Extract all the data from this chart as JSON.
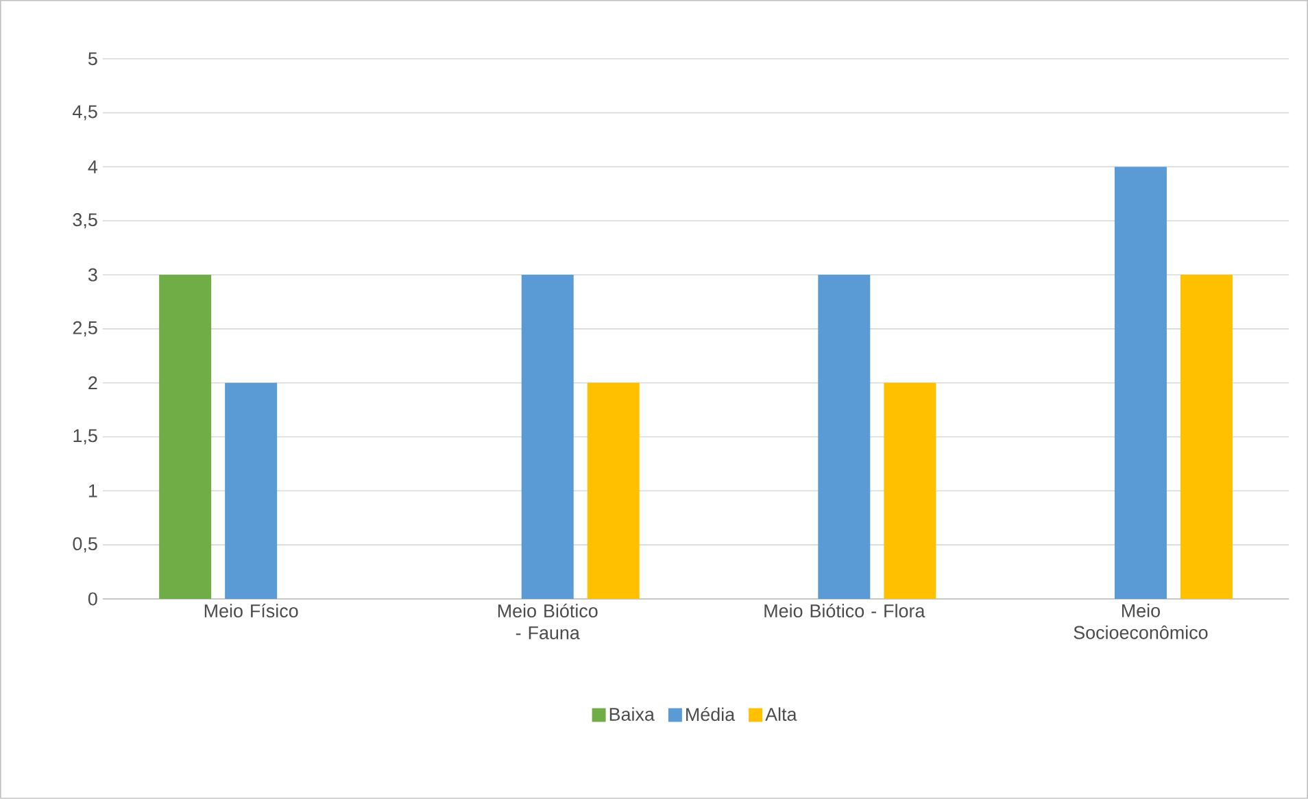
{
  "chart_data": {
    "type": "bar",
    "categories": [
      "Meio Físico",
      "Meio Biótico - Fauna",
      "Meio Biótico - Flora",
      "Meio Socioeconômico"
    ],
    "series": [
      {
        "name": "Baixa",
        "color": "#70ad47",
        "values": [
          3,
          null,
          null,
          null
        ]
      },
      {
        "name": "Média",
        "color": "#5b9bd5",
        "values": [
          2,
          3,
          3,
          4
        ]
      },
      {
        "name": "Alta",
        "color": "#ffc000",
        "values": [
          null,
          2,
          2,
          3
        ]
      }
    ],
    "ylim": [
      0,
      5
    ],
    "yticks": [
      0,
      {
        "value": 0.5,
        "label": "0,5"
      },
      1,
      {
        "value": 1.5,
        "label": "1,5"
      },
      2,
      {
        "value": 2.5,
        "label": "2,5"
      },
      3,
      {
        "value": 3.5,
        "label": "3,5"
      },
      4,
      {
        "value": 4.5,
        "label": "4,5"
      },
      5
    ],
    "grid": "y",
    "legend": "bottom"
  }
}
